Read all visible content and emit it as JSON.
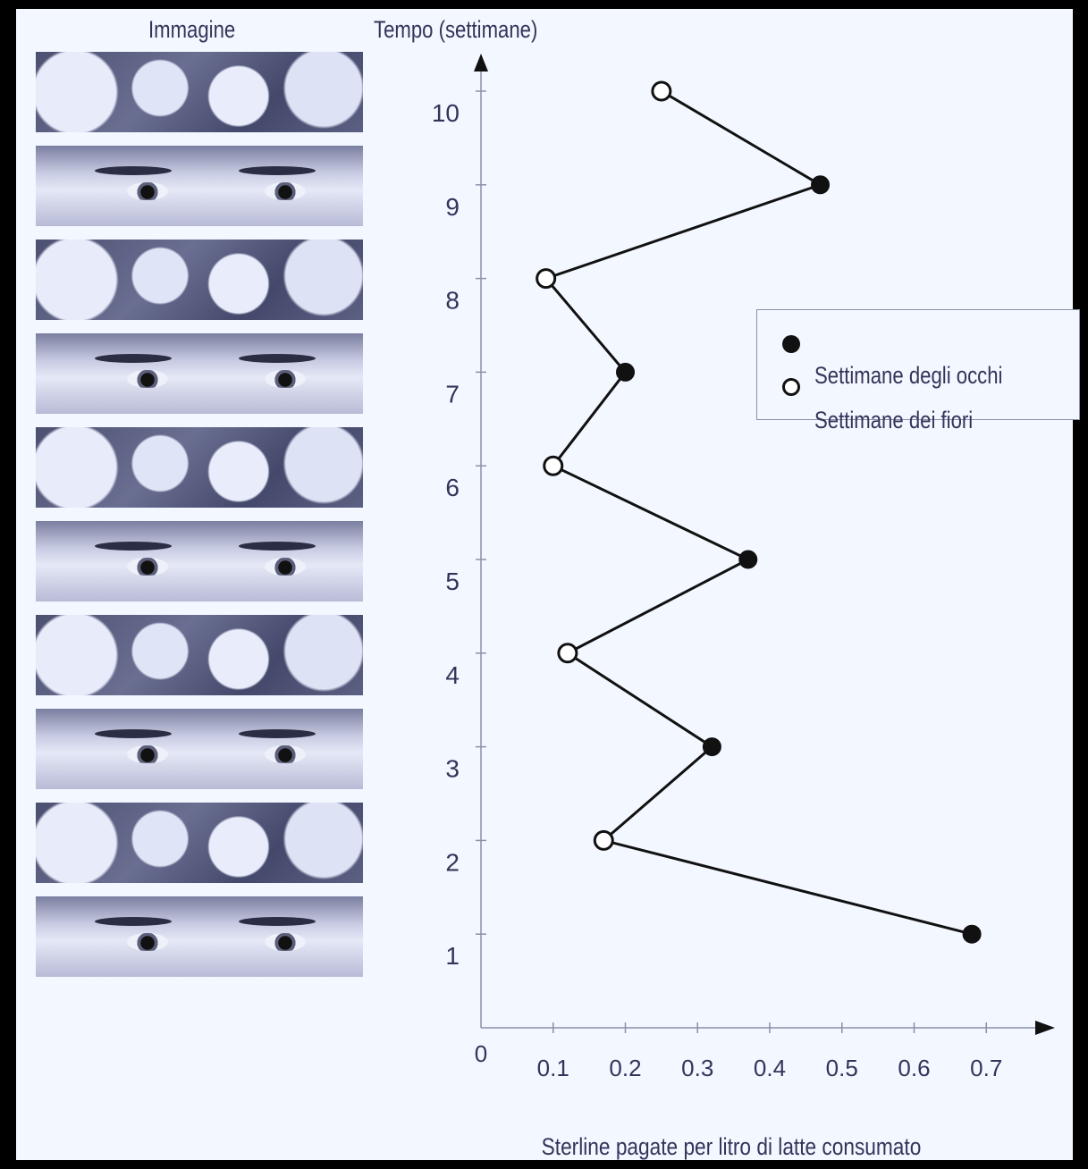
{
  "headers": {
    "images": "Immagine",
    "time": "Tempo (settimane)"
  },
  "image_strips": [
    {
      "week": 10,
      "kind": "flowers-icon"
    },
    {
      "week": 9,
      "kind": "eyes-icon"
    },
    {
      "week": 8,
      "kind": "flowers-icon"
    },
    {
      "week": 7,
      "kind": "eyes-icon"
    },
    {
      "week": 6,
      "kind": "flowers-icon"
    },
    {
      "week": 5,
      "kind": "eyes-icon"
    },
    {
      "week": 4,
      "kind": "flowers-icon"
    },
    {
      "week": 3,
      "kind": "eyes-icon"
    },
    {
      "week": 2,
      "kind": "flowers-icon"
    },
    {
      "week": 1,
      "kind": "eyes-icon"
    }
  ],
  "colors": {
    "line": "#111111",
    "text": "#34345a",
    "axis": "#8a90aa",
    "background": "#f3f7ff"
  },
  "chart_data": {
    "type": "line",
    "title": "",
    "xlabel": "Sterline pagate per litro di latte consumato",
    "ylabel": "Tempo (settimane)",
    "xlim": [
      0,
      0.8
    ],
    "ylim": [
      0,
      10.5
    ],
    "x_ticks": [
      "0",
      "0.1",
      "0.2",
      "0.3",
      "0.4",
      "0.5",
      "0.6",
      "0.7"
    ],
    "y_ticks": [
      "1",
      "2",
      "3",
      "4",
      "5",
      "6",
      "7",
      "8",
      "9",
      "10"
    ],
    "points": [
      {
        "week": 1,
        "value": 0.68,
        "kind": "eyes"
      },
      {
        "week": 2,
        "value": 0.17,
        "kind": "flowers"
      },
      {
        "week": 3,
        "value": 0.32,
        "kind": "eyes"
      },
      {
        "week": 4,
        "value": 0.12,
        "kind": "flowers"
      },
      {
        "week": 5,
        "value": 0.37,
        "kind": "eyes"
      },
      {
        "week": 6,
        "value": 0.1,
        "kind": "flowers"
      },
      {
        "week": 7,
        "value": 0.2,
        "kind": "eyes"
      },
      {
        "week": 8,
        "value": 0.09,
        "kind": "flowers"
      },
      {
        "week": 9,
        "value": 0.47,
        "kind": "eyes"
      },
      {
        "week": 10,
        "value": 0.25,
        "kind": "flowers"
      }
    ],
    "series": [
      {
        "name": "Settimane degli occhi",
        "marker": "filled-circle"
      },
      {
        "name": "Settimane dei fiori",
        "marker": "open-circle"
      }
    ],
    "grid": false,
    "legend_position": "right"
  }
}
